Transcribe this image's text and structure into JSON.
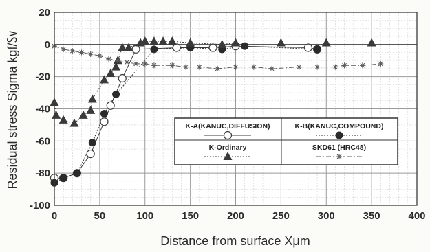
{
  "chart_data": {
    "type": "scatter",
    "xlabel": "Distance from surface Xμm",
    "ylabel": "Residual stress Sigma kgf/㏜",
    "xlim": [
      0,
      400
    ],
    "ylim": [
      -100,
      20
    ],
    "x_ticks": [
      0,
      50,
      100,
      150,
      200,
      250,
      300,
      350,
      400
    ],
    "y_ticks": [
      20,
      0,
      -20,
      -40,
      -60,
      -80,
      -100
    ],
    "grid": "on",
    "legend_position": "center-right",
    "series": [
      {
        "name": "K-A(KANUC,DIFFUSION)",
        "marker": "open-circle",
        "line": "solid",
        "color": "#3a3a3a",
        "points": [
          [
            0,
            -83
          ],
          [
            10,
            -83
          ],
          [
            25,
            -80
          ],
          [
            40,
            -68
          ],
          [
            55,
            -48
          ],
          [
            62,
            -38
          ],
          [
            75,
            -21
          ],
          [
            90,
            -3
          ],
          [
            135,
            -2
          ],
          [
            175,
            -2
          ],
          [
            200,
            -1
          ],
          [
            280,
            -2
          ],
          [
            290,
            -3
          ]
        ]
      },
      {
        "name": "K-B(KANUC,COMPOUND)",
        "marker": "filled-circle",
        "line": "dotted",
        "color": "#2a2a2a",
        "points": [
          [
            0,
            -86
          ],
          [
            10,
            -83
          ],
          [
            25,
            -80
          ],
          [
            42,
            -61
          ],
          [
            55,
            -43
          ],
          [
            68,
            -31
          ],
          [
            110,
            -3
          ],
          [
            150,
            -2
          ],
          [
            185,
            -3
          ],
          [
            210,
            -1
          ],
          [
            290,
            -3
          ]
        ]
      },
      {
        "name": "K-Ordinary",
        "marker": "filled-triangle",
        "line": "dotted",
        "color": "#3a3a3a",
        "points": [
          [
            0,
            -36
          ],
          [
            2,
            -44
          ],
          [
            10,
            -47
          ],
          [
            22,
            -49
          ],
          [
            32,
            -44
          ],
          [
            40,
            -41
          ],
          [
            42,
            -34
          ],
          [
            55,
            -22
          ],
          [
            62,
            -18
          ],
          [
            68,
            -14
          ],
          [
            70,
            -10
          ],
          [
            75,
            -2
          ],
          [
            82,
            -2
          ],
          [
            95,
            1
          ],
          [
            100,
            2
          ],
          [
            110,
            2
          ],
          [
            120,
            2
          ],
          [
            130,
            2
          ],
          [
            150,
            1
          ],
          [
            185,
            0
          ],
          [
            200,
            1
          ],
          [
            250,
            1
          ],
          [
            300,
            1
          ],
          [
            350,
            1
          ]
        ]
      },
      {
        "name": "SKD61 (HRC48)",
        "marker": "star",
        "line": "dash-dot",
        "color": "#5a5a5a",
        "points": [
          [
            0,
            -1
          ],
          [
            10,
            -3
          ],
          [
            20,
            -4
          ],
          [
            30,
            -5
          ],
          [
            40,
            -6
          ],
          [
            50,
            -7
          ],
          [
            60,
            -9
          ],
          [
            70,
            -10
          ],
          [
            80,
            -11
          ],
          [
            90,
            -12
          ],
          [
            100,
            -12
          ],
          [
            110,
            -13
          ],
          [
            130,
            -13
          ],
          [
            145,
            -14
          ],
          [
            160,
            -14
          ],
          [
            180,
            -15
          ],
          [
            200,
            -14
          ],
          [
            220,
            -14
          ],
          [
            240,
            -15
          ],
          [
            270,
            -14
          ],
          [
            290,
            -14
          ],
          [
            310,
            -14
          ],
          [
            320,
            -13
          ],
          [
            340,
            -13
          ],
          [
            360,
            -12
          ]
        ]
      }
    ]
  }
}
